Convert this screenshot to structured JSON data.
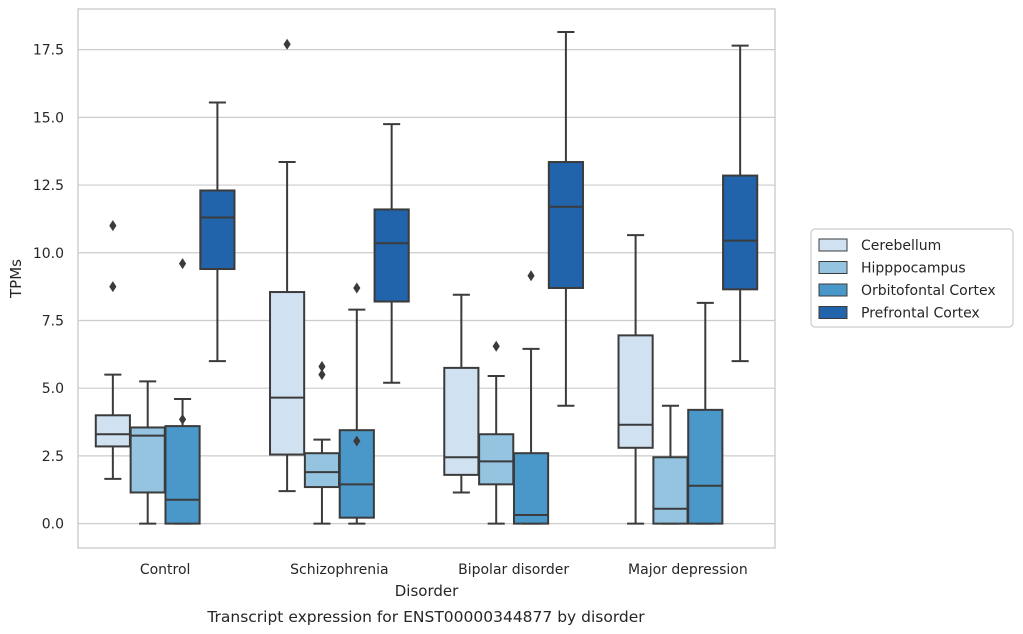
{
  "chart_data": {
    "type": "boxplot",
    "title": "Transcript expression for ENST00000344877 by disorder",
    "xlabel": "Disorder",
    "ylabel": "TPMs",
    "ylim": [
      -0.9,
      19.0
    ],
    "yticks": [
      "0.0",
      "2.5",
      "5.0",
      "7.5",
      "10.0",
      "12.5",
      "15.0",
      "17.5"
    ],
    "grid": true,
    "legend_position": "right",
    "categories": [
      "Control",
      "Schizophrenia",
      "Bipolar disorder",
      "Major depression"
    ],
    "series": [
      {
        "name": "Cerebellum",
        "color": "#d0e1f2",
        "boxes": [
          {
            "whislo": 1.65,
            "q1": 2.85,
            "med": 3.3,
            "q3": 4.0,
            "whishi": 5.5,
            "fliers": [
              11.0,
              8.75
            ]
          },
          {
            "whislo": 1.2,
            "q1": 2.55,
            "med": 4.65,
            "q3": 8.55,
            "whishi": 13.35,
            "fliers": [
              17.7
            ]
          },
          {
            "whislo": 1.15,
            "q1": 1.8,
            "med": 2.45,
            "q3": 5.75,
            "whishi": 8.45,
            "fliers": []
          },
          {
            "whislo": 0.0,
            "q1": 2.8,
            "med": 3.65,
            "q3": 6.95,
            "whishi": 10.65,
            "fliers": []
          }
        ]
      },
      {
        "name": "Hipppocampus",
        "color": "#94c4df",
        "boxes": [
          {
            "whislo": 0.0,
            "q1": 1.15,
            "med": 3.25,
            "q3": 3.55,
            "whishi": 5.25,
            "fliers": []
          },
          {
            "whislo": 0.0,
            "q1": 1.35,
            "med": 1.9,
            "q3": 2.6,
            "whishi": 3.1,
            "fliers": [
              5.8,
              5.5
            ]
          },
          {
            "whislo": 0.0,
            "q1": 1.45,
            "med": 2.3,
            "q3": 3.3,
            "whishi": 5.45,
            "fliers": [
              6.55
            ]
          },
          {
            "whislo": 0.0,
            "q1": 0.0,
            "med": 0.55,
            "q3": 2.45,
            "whishi": 4.35,
            "fliers": []
          }
        ]
      },
      {
        "name": "Orbitofontal Cortex",
        "color": "#4a98c9",
        "boxes": [
          {
            "whislo": 0.0,
            "q1": 0.0,
            "med": 0.88,
            "q3": 3.6,
            "whishi": 4.6,
            "fliers": [
              9.6,
              3.85
            ]
          },
          {
            "whislo": 0.0,
            "q1": 0.22,
            "med": 1.45,
            "q3": 3.45,
            "whishi": 7.9,
            "fliers": [
              8.7,
              3.05
            ]
          },
          {
            "whislo": 0.0,
            "q1": 0.0,
            "med": 0.32,
            "q3": 2.6,
            "whishi": 6.45,
            "fliers": [
              9.15
            ]
          },
          {
            "whislo": 0.0,
            "q1": 0.0,
            "med": 1.4,
            "q3": 4.2,
            "whishi": 8.15,
            "fliers": []
          }
        ]
      },
      {
        "name": "Prefrontal Cortex",
        "color": "#2164ab",
        "boxes": [
          {
            "whislo": 6.0,
            "q1": 9.4,
            "med": 11.3,
            "q3": 12.3,
            "whishi": 15.55,
            "fliers": []
          },
          {
            "whislo": 5.2,
            "q1": 8.2,
            "med": 10.35,
            "q3": 11.6,
            "whishi": 14.75,
            "fliers": []
          },
          {
            "whislo": 4.35,
            "q1": 8.7,
            "med": 11.7,
            "q3": 13.35,
            "whishi": 18.15,
            "fliers": []
          },
          {
            "whislo": 6.0,
            "q1": 8.65,
            "med": 10.45,
            "q3": 12.85,
            "whishi": 17.65,
            "fliers": []
          }
        ]
      }
    ]
  }
}
